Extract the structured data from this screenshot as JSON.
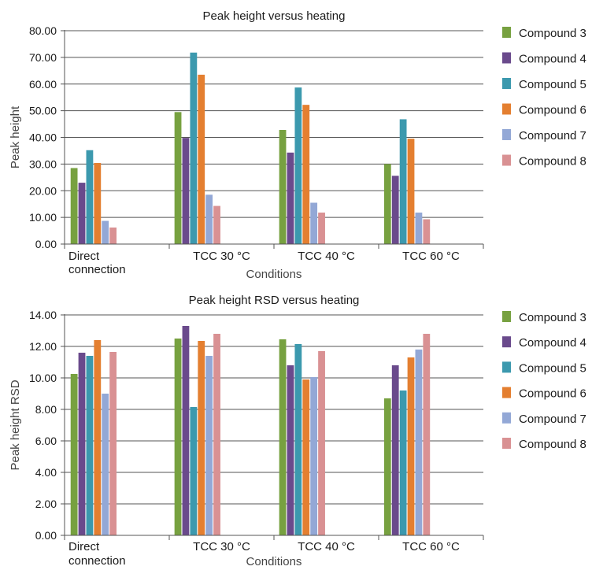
{
  "chart_data": [
    {
      "type": "bar",
      "title": "Peak height versus heating",
      "xlabel": "Conditions",
      "ylabel": "Peak height",
      "ylim": [
        0,
        80
      ],
      "yticks": [
        "0.00",
        "10.00",
        "20.00",
        "30.00",
        "40.00",
        "50.00",
        "60.00",
        "70.00",
        "80.00"
      ],
      "categories": [
        [
          "Direct",
          "connection"
        ],
        [
          "TCC 30 °C"
        ],
        [
          "TCC 40 °C"
        ],
        [
          "TCC 60 °C"
        ]
      ],
      "grid": true,
      "legend_position": "right",
      "series": [
        {
          "name": "Compound 3",
          "color": "#77a140",
          "values": [
            28.5,
            49.5,
            42.8,
            30.0
          ]
        },
        {
          "name": "Compound 4",
          "color": "#6a4a8c",
          "values": [
            23.0,
            39.8,
            34.3,
            25.6
          ]
        },
        {
          "name": "Compound 5",
          "color": "#3c99ae",
          "values": [
            35.2,
            71.8,
            58.7,
            46.8
          ]
        },
        {
          "name": "Compound 6",
          "color": "#e47f30",
          "values": [
            30.4,
            63.5,
            52.2,
            39.5
          ]
        },
        {
          "name": "Compound 7",
          "color": "#93a8d6",
          "values": [
            8.7,
            18.5,
            15.5,
            11.8
          ]
        },
        {
          "name": "Compound 8",
          "color": "#d99193",
          "values": [
            6.2,
            14.3,
            11.8,
            9.3
          ]
        }
      ]
    },
    {
      "type": "bar",
      "title": "Peak height RSD versus heating",
      "xlabel": "Conditions",
      "ylabel": "Peak height RSD",
      "ylim": [
        0,
        14
      ],
      "yticks": [
        "0.00",
        "2.00",
        "4.00",
        "6.00",
        "8.00",
        "10.00",
        "12.00",
        "14.00"
      ],
      "categories": [
        [
          "Direct",
          "connection"
        ],
        [
          "TCC 30 °C"
        ],
        [
          "TCC 40 °C"
        ],
        [
          "TCC 60 °C"
        ]
      ],
      "grid": true,
      "legend_position": "right",
      "series": [
        {
          "name": "Compound 3",
          "color": "#77a140",
          "values": [
            10.25,
            12.5,
            12.45,
            8.7
          ]
        },
        {
          "name": "Compound 4",
          "color": "#6a4a8c",
          "values": [
            11.6,
            13.3,
            10.8,
            10.8
          ]
        },
        {
          "name": "Compound 5",
          "color": "#3c99ae",
          "values": [
            11.4,
            8.15,
            12.15,
            9.2
          ]
        },
        {
          "name": "Compound 6",
          "color": "#e47f30",
          "values": [
            12.4,
            12.35,
            9.9,
            11.3
          ]
        },
        {
          "name": "Compound 7",
          "color": "#93a8d6",
          "values": [
            9.0,
            11.4,
            10.05,
            11.8
          ]
        },
        {
          "name": "Compound 8",
          "color": "#d99193",
          "values": [
            11.65,
            12.8,
            11.7,
            12.8
          ]
        }
      ]
    }
  ]
}
